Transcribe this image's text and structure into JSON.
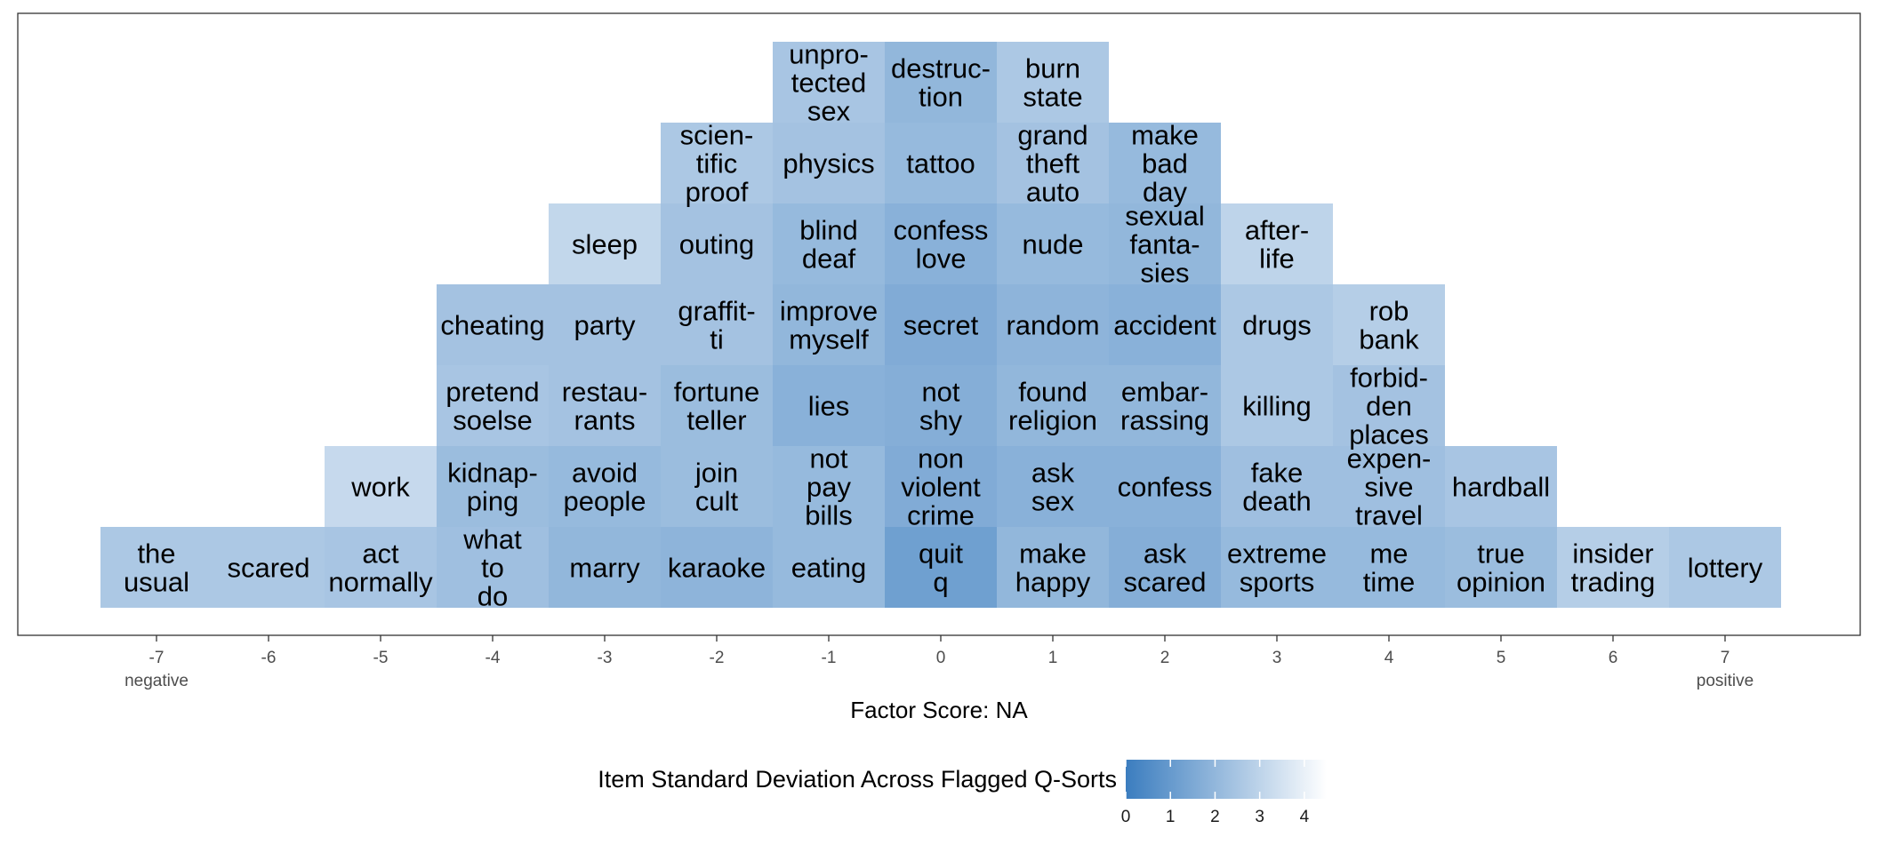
{
  "chart_data": {
    "type": "heatmap",
    "xlabel": "Factor Score: NA",
    "x_ticks": [
      -7,
      -6,
      -5,
      -4,
      -3,
      -2,
      -1,
      0,
      1,
      2,
      3,
      4,
      5,
      6,
      7
    ],
    "x_end_labels": {
      "negative": "negative",
      "positive": "positive"
    },
    "legend": {
      "title": "Item Standard Deviation Across Flagged Q-Sorts",
      "ticks": [
        0,
        1,
        2,
        3,
        4
      ],
      "range": [
        0,
        4.5
      ],
      "color_low": "#3b7dbf",
      "color_high": "#ffffff",
      "placement": "bottom"
    },
    "columns": [
      {
        "score": -7,
        "items": [
          {
            "lines": [
              "the",
              "usual"
            ],
            "sd": 2.6
          }
        ]
      },
      {
        "score": -6,
        "items": [
          {
            "lines": [
              "scared"
            ],
            "sd": 2.6
          }
        ]
      },
      {
        "score": -5,
        "items": [
          {
            "lines": [
              "act",
              "normally"
            ],
            "sd": 2.5
          },
          {
            "lines": [
              "work"
            ],
            "sd": 3.2
          }
        ]
      },
      {
        "score": -4,
        "items": [
          {
            "lines": [
              "what",
              "to",
              "do"
            ],
            "sd": 2.3
          },
          {
            "lines": [
              "kidnap-",
              "ping"
            ],
            "sd": 2.2
          },
          {
            "lines": [
              "pretend",
              "soelse"
            ],
            "sd": 2.5
          },
          {
            "lines": [
              "cheating"
            ],
            "sd": 2.4
          }
        ]
      },
      {
        "score": -3,
        "items": [
          {
            "lines": [
              "marry"
            ],
            "sd": 2.0
          },
          {
            "lines": [
              "avoid",
              "people"
            ],
            "sd": 2.1
          },
          {
            "lines": [
              "restau-",
              "rants"
            ],
            "sd": 2.4
          },
          {
            "lines": [
              "party"
            ],
            "sd": 2.4
          },
          {
            "lines": [
              "sleep"
            ],
            "sd": 3.1
          }
        ]
      },
      {
        "score": -2,
        "items": [
          {
            "lines": [
              "karaoke"
            ],
            "sd": 1.9
          },
          {
            "lines": [
              "join",
              "cult"
            ],
            "sd": 2.2
          },
          {
            "lines": [
              "fortune",
              "teller"
            ],
            "sd": 2.2
          },
          {
            "lines": [
              "graffit-",
              "ti"
            ],
            "sd": 2.4
          },
          {
            "lines": [
              "outing"
            ],
            "sd": 2.4
          },
          {
            "lines": [
              "scien-",
              "tific",
              "proof"
            ],
            "sd": 2.6
          }
        ]
      },
      {
        "score": -1,
        "items": [
          {
            "lines": [
              "eating"
            ],
            "sd": 2.1
          },
          {
            "lines": [
              "not",
              "pay",
              "bills"
            ],
            "sd": 2.1
          },
          {
            "lines": [
              "lies"
            ],
            "sd": 1.8
          },
          {
            "lines": [
              "improve",
              "myself"
            ],
            "sd": 2.0
          },
          {
            "lines": [
              "blind",
              "deaf"
            ],
            "sd": 2.1
          },
          {
            "lines": [
              "physics"
            ],
            "sd": 2.4
          },
          {
            "lines": [
              "unpro-",
              "tected",
              "sex"
            ],
            "sd": 2.5
          }
        ]
      },
      {
        "score": 0,
        "items": [
          {
            "lines": [
              "quit",
              "q"
            ],
            "sd": 1.2
          },
          {
            "lines": [
              "non",
              "violent",
              "crime"
            ],
            "sd": 1.6
          },
          {
            "lines": [
              "not",
              "shy"
            ],
            "sd": 1.7
          },
          {
            "lines": [
              "secret"
            ],
            "sd": 1.6
          },
          {
            "lines": [
              "confess",
              "love"
            ],
            "sd": 1.8
          },
          {
            "lines": [
              "tattoo"
            ],
            "sd": 2.1
          },
          {
            "lines": [
              "destruc-",
              "tion"
            ],
            "sd": 2.0
          }
        ]
      },
      {
        "score": 1,
        "items": [
          {
            "lines": [
              "make",
              "happy"
            ],
            "sd": 2.0
          },
          {
            "lines": [
              "ask",
              "sex"
            ],
            "sd": 1.8
          },
          {
            "lines": [
              "found",
              "religion"
            ],
            "sd": 2.0
          },
          {
            "lines": [
              "random"
            ],
            "sd": 1.9
          },
          {
            "lines": [
              "nude"
            ],
            "sd": 2.1
          },
          {
            "lines": [
              "grand",
              "theft",
              "auto"
            ],
            "sd": 2.4
          },
          {
            "lines": [
              "burn",
              "state"
            ],
            "sd": 2.6
          }
        ]
      },
      {
        "score": 2,
        "items": [
          {
            "lines": [
              "ask",
              "scared"
            ],
            "sd": 1.7
          },
          {
            "lines": [
              "confess"
            ],
            "sd": 1.8
          },
          {
            "lines": [
              "embar-",
              "rassing"
            ],
            "sd": 2.0
          },
          {
            "lines": [
              "accident"
            ],
            "sd": 1.8
          },
          {
            "lines": [
              "sexual",
              "fanta-",
              "sies"
            ],
            "sd": 2.0
          },
          {
            "lines": [
              "make",
              "bad",
              "day"
            ],
            "sd": 2.1
          }
        ]
      },
      {
        "score": 3,
        "items": [
          {
            "lines": [
              "extreme",
              "sports"
            ],
            "sd": 2.1
          },
          {
            "lines": [
              "fake",
              "death"
            ],
            "sd": 2.3
          },
          {
            "lines": [
              "killing"
            ],
            "sd": 2.6
          },
          {
            "lines": [
              "drugs"
            ],
            "sd": 2.6
          },
          {
            "lines": [
              "after-",
              "life"
            ],
            "sd": 3.0
          }
        ]
      },
      {
        "score": 4,
        "items": [
          {
            "lines": [
              "me",
              "time"
            ],
            "sd": 2.1
          },
          {
            "lines": [
              "expen-",
              "sive",
              "travel"
            ],
            "sd": 2.3
          },
          {
            "lines": [
              "forbid-",
              "den",
              "places"
            ],
            "sd": 2.4
          },
          {
            "lines": [
              "rob",
              "bank"
            ],
            "sd": 2.8
          }
        ]
      },
      {
        "score": 5,
        "items": [
          {
            "lines": [
              "true",
              "opinion"
            ],
            "sd": 2.2
          },
          {
            "lines": [
              "hardball"
            ],
            "sd": 2.5
          }
        ]
      },
      {
        "score": 6,
        "items": [
          {
            "lines": [
              "insider",
              "trading"
            ],
            "sd": 2.8
          }
        ]
      },
      {
        "score": 7,
        "items": [
          {
            "lines": [
              "lottery"
            ],
            "sd": 2.6
          }
        ]
      }
    ]
  }
}
